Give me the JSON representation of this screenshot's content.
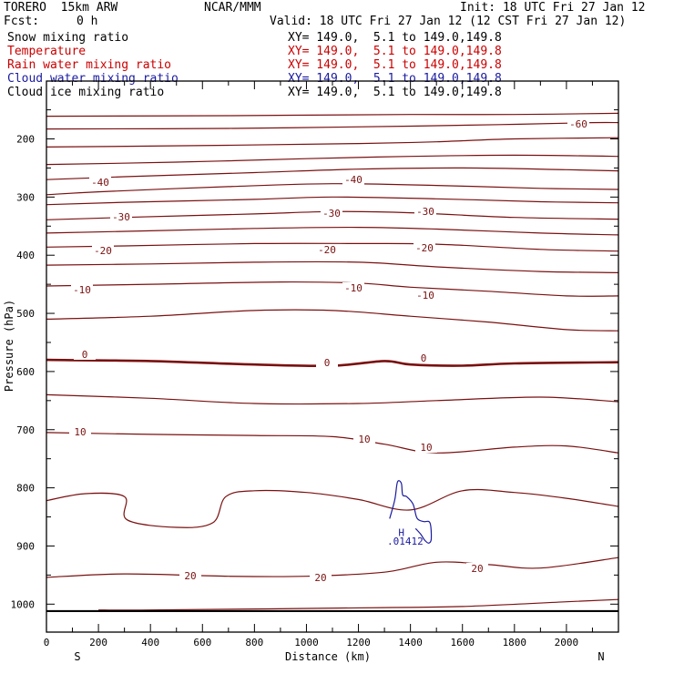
{
  "header": {
    "model": "TORERO  15km ARW",
    "center": "NCAR/MMM",
    "init": "Init: 18 UTC Fri 27 Jan 12",
    "fcst_label": "Fcst:",
    "fcst_value": "0 h",
    "valid": "Valid: 18 UTC Fri 27 Jan 12 (12 CST Fri 27 Jan 12)"
  },
  "legend": [
    {
      "label": "Snow mixing ratio",
      "xy": "XY= 149.0,  5.1 to 149.0,149.8",
      "color": "#000000"
    },
    {
      "label": "Temperature",
      "xy": "XY= 149.0,  5.1 to 149.0,149.8",
      "color": "#cc0000"
    },
    {
      "label": "Rain water mixing ratio",
      "xy": "XY= 149.0,  5.1 to 149.0,149.8",
      "color": "#cc0000"
    },
    {
      "label": "Cloud water mixing ratio",
      "xy": "XY= 149.0,  5.1 to 149.0,149.8",
      "color": "#1a1aa0"
    },
    {
      "label": "Cloud ice mixing ratio",
      "xy": "XY= 149.0,  5.1 to 149.0,149.8",
      "color": "#000000"
    }
  ],
  "colors": {
    "temperature": "#7a1010",
    "cloud_water": "#1a1aa0",
    "axis": "#000000"
  },
  "chart_data": {
    "type": "line",
    "subtype": "vertical cross-section contour",
    "xlabel": "Distance (km)",
    "ylabel": "Pressure (hPa)",
    "xlim": [
      0,
      2200
    ],
    "ylim": [
      1050,
      100
    ],
    "x_ticks": [
      0,
      200,
      400,
      600,
      800,
      1000,
      1200,
      1400,
      1600,
      1800,
      2000
    ],
    "y_ticks": [
      200,
      300,
      400,
      500,
      600,
      700,
      800,
      900,
      1000
    ],
    "x_end_labels": {
      "left": "S",
      "right": "N"
    },
    "temperature_contour_interval": 5,
    "temperature_contours": [
      {
        "level": -65,
        "x": [
          0,
          700,
          1400,
          1800,
          2200
        ],
        "p": [
          161,
          160,
          158,
          158,
          156
        ]
      },
      {
        "level": -60,
        "x": [
          0,
          700,
          1400,
          1800,
          2100,
          2200
        ],
        "p": [
          183,
          182,
          178,
          175,
          172,
          172
        ]
      },
      {
        "level": -55,
        "x": [
          0,
          700,
          1200,
          1500,
          1800,
          2200
        ],
        "p": [
          214,
          211,
          208,
          205,
          200,
          198
        ]
      },
      {
        "level": -50,
        "x": [
          0,
          500,
          1000,
          1400,
          1800,
          2200
        ],
        "p": [
          244,
          240,
          234,
          230,
          228,
          230
        ]
      },
      {
        "level": -45,
        "x": [
          0,
          300,
          800,
          1200,
          1600,
          2000,
          2200
        ],
        "p": [
          270,
          265,
          258,
          252,
          250,
          253,
          255
        ]
      },
      {
        "level": -40,
        "x": [
          0,
          200,
          700,
          1100,
          1500,
          1900,
          2200
        ],
        "p": [
          296,
          291,
          282,
          277,
          280,
          285,
          287
        ]
      },
      {
        "level": -35,
        "x": [
          0,
          300,
          800,
          1100,
          1500,
          1900,
          2200
        ],
        "p": [
          313,
          309,
          304,
          300,
          303,
          308,
          310
        ]
      },
      {
        "level": -30,
        "x": [
          0,
          300,
          800,
          1100,
          1400,
          1800,
          2200
        ],
        "p": [
          339,
          335,
          329,
          325,
          327,
          335,
          338
        ]
      },
      {
        "level": -25,
        "x": [
          0,
          400,
          800,
          1200,
          1500,
          1900,
          2200
        ],
        "p": [
          362,
          358,
          354,
          352,
          355,
          362,
          365
        ]
      },
      {
        "level": -20,
        "x": [
          0,
          300,
          800,
          1200,
          1500,
          1900,
          2200
        ],
        "p": [
          386,
          384,
          380,
          380,
          381,
          390,
          393
        ]
      },
      {
        "level": -15,
        "x": [
          0,
          400,
          800,
          1200,
          1500,
          1900,
          2200
        ],
        "p": [
          417,
          415,
          412,
          412,
          420,
          428,
          430
        ]
      },
      {
        "level": -10,
        "x": [
          0,
          400,
          900,
          1200,
          1400,
          1700,
          2000,
          2200
        ],
        "p": [
          453,
          450,
          446,
          448,
          455,
          462,
          470,
          470
        ]
      },
      {
        "level": -5,
        "x": [
          0,
          400,
          800,
          1100,
          1400,
          1700,
          2000,
          2200
        ],
        "p": [
          510,
          505,
          495,
          495,
          505,
          515,
          528,
          530
        ]
      },
      {
        "level": 0,
        "x": [
          0,
          400,
          800,
          1100,
          1300,
          1400,
          1600,
          1800,
          2200
        ],
        "p": [
          580,
          582,
          588,
          590,
          582,
          588,
          590,
          586,
          584
        ]
      },
      {
        "level": 5,
        "x": [
          0,
          400,
          800,
          1200,
          1500,
          1900,
          2200
        ],
        "p": [
          640,
          646,
          655,
          655,
          650,
          644,
          652
        ]
      },
      {
        "level": 10,
        "x": [
          0,
          400,
          800,
          1100,
          1300,
          1500,
          1800,
          2000,
          2200
        ],
        "p": [
          705,
          708,
          710,
          712,
          725,
          740,
          730,
          728,
          740
        ]
      },
      {
        "level": 15,
        "x": [
          0,
          150,
          300,
          310,
          500,
          640,
          690,
          800,
          1000,
          1200,
          1400,
          1600,
          1800,
          2000,
          2200
        ],
        "p": [
          822,
          810,
          815,
          855,
          868,
          860,
          815,
          805,
          808,
          820,
          838,
          805,
          808,
          818,
          832
        ]
      },
      {
        "level": 20,
        "x": [
          0,
          300,
          700,
          1000,
          1300,
          1500,
          1700,
          1900,
          2200
        ],
        "p": [
          954,
          948,
          952,
          952,
          945,
          928,
          932,
          938,
          920
        ]
      },
      {
        "level": 25,
        "x": [
          200,
          400,
          1300,
          1600,
          2000,
          2200
        ],
        "p": [
          1010,
          1010,
          1006,
          1004,
          996,
          992
        ]
      }
    ],
    "temperature_labels": [
      -60,
      -40,
      -40,
      -30,
      -30,
      -30,
      -20,
      -20,
      -20,
      -10,
      -10,
      -10,
      0,
      0,
      0,
      10,
      10,
      10,
      20,
      20,
      20
    ],
    "cloud_water": {
      "x": [
        1320,
        1340,
        1350,
        1365,
        1370,
        1385,
        1410,
        1425,
        1450,
        1475,
        1480,
        1470,
        1455,
        1440,
        1420
      ],
      "p": [
        853,
        820,
        790,
        792,
        812,
        815,
        828,
        852,
        858,
        860,
        888,
        895,
        890,
        880,
        870
      ],
      "max_label": "H",
      "max_value": ".01412"
    },
    "surface_pressure": 1012
  }
}
